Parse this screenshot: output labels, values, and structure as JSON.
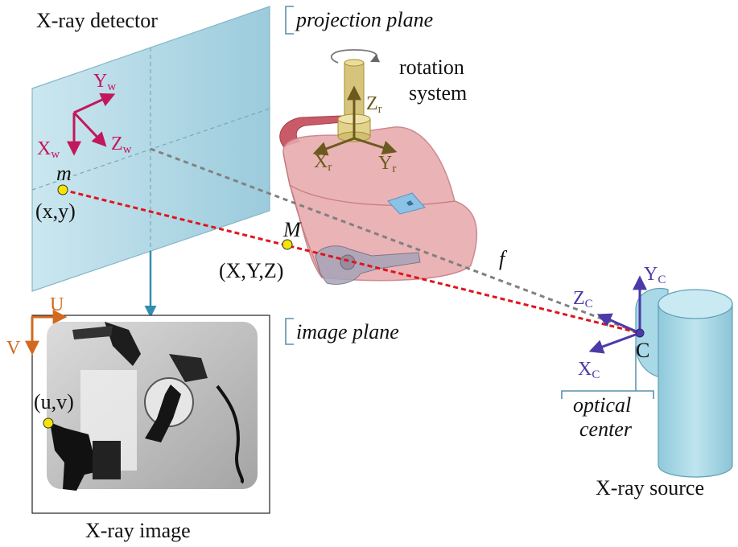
{
  "labels": {
    "detector": "X-ray detector",
    "projection_plane": "projection plane",
    "image_plane": "image plane",
    "rotation_line1": "rotation",
    "rotation_line2": "system",
    "xray_image": "X-ray image",
    "xray_source": "X-ray source",
    "optical_line1": "optical",
    "optical_line2": "center",
    "point_m": "m",
    "point_m_coords": "(x,y)",
    "point_M": "M",
    "point_M_coords": "(X,Y,Z)",
    "point_uv": "(u,v)",
    "focal": "f",
    "center_C": "C"
  },
  "axes": {
    "world": {
      "x": "X",
      "x_sub": "w",
      "y": "Y",
      "y_sub": "w",
      "z": "Z",
      "z_sub": "w"
    },
    "rotation": {
      "x": "X",
      "x_sub": "r",
      "y": "Y",
      "y_sub": "r",
      "z": "Z",
      "z_sub": "r"
    },
    "camera": {
      "x": "X",
      "x_sub": "C",
      "y": "Y",
      "y_sub": "C",
      "z": "Z",
      "z_sub": "C"
    },
    "image": {
      "u": "U",
      "v": "V"
    }
  },
  "colors": {
    "world_axes": "#c2185b",
    "rotation_axes": "#6b5a1e",
    "camera_axes": "#4b3aa8",
    "image_axes": "#d2691e",
    "ray": "#e0141c",
    "optical_axis": "#808080",
    "detector_fill": "#a9d3e2",
    "bag_fill": "#e8a9ad",
    "source_fill": "#a9d8e6",
    "point_fill": "#f5e400"
  }
}
